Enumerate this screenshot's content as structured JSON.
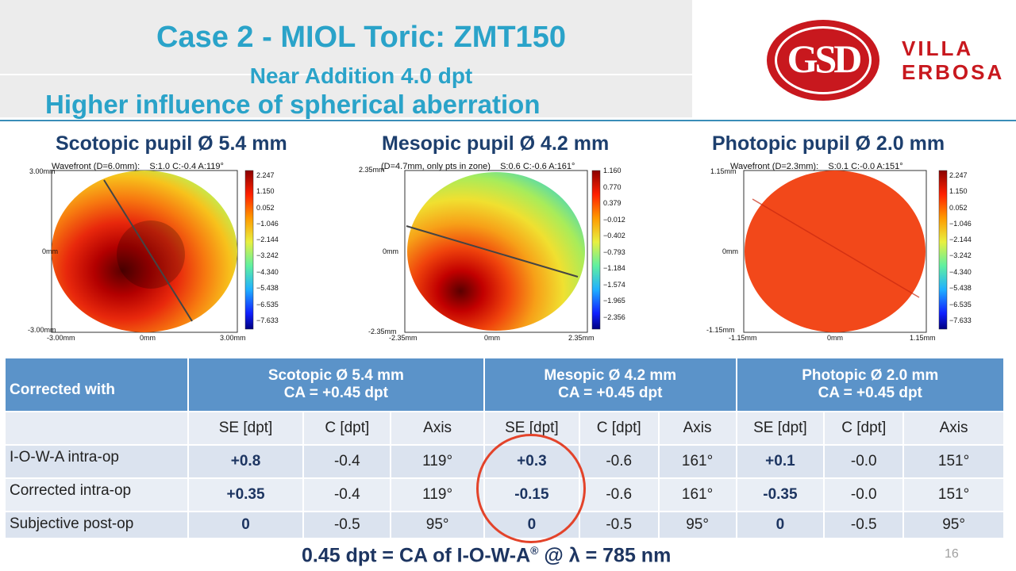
{
  "header": {
    "title": "Case 2 - MIOL Toric: ZMT150",
    "subtitle": "Near Addition 4.0 dpt",
    "subtitle2": "Higher influence of spherical aberration"
  },
  "logo": {
    "letters": "GSD",
    "name_line1": "VILLA",
    "name_line2": "ERBOSA",
    "color": "#c8181e"
  },
  "pupils": [
    {
      "title": "Scotopic pupil Ø 5.4 mm",
      "caption": "Wavefront (D=6.0mm):    S:1.0 C:-0.4 A:119°",
      "y_top": "3.00mm",
      "y_mid": "0mm",
      "y_bottom": "-3.00mm",
      "x_left": "-3.00mm",
      "x_mid": "0mm",
      "x_right": "3.00mm",
      "colorbar": [
        "2.247",
        "1.150",
        "0.052",
        "−1.046",
        "−2.144",
        "−3.242",
        "−4.340",
        "−5.438",
        "−6.535",
        "−7.633"
      ]
    },
    {
      "title": "Mesopic pupil Ø 4.2 mm",
      "caption": "(D=4.7mm, only pts in zone)    S:0.6 C:-0.6 A:161°",
      "y_top": "2.35mm",
      "y_mid": "0mm",
      "y_bottom": "-2.35mm",
      "x_left": "-2.35mm",
      "x_mid": "0mm",
      "x_right": "2.35mm",
      "colorbar": [
        "1.160",
        "0.770",
        "0.379",
        "−0.012",
        "−0.402",
        "−0.793",
        "−1.184",
        "−1.574",
        "−1.965",
        "−2.356"
      ]
    },
    {
      "title": "Photopic pupil Ø 2.0 mm",
      "caption": "Wavefront (D=2.3mm):    S:0.1 C:-0.0 A:151°",
      "y_top": "1.15mm",
      "y_mid": "0mm",
      "y_bottom": "-1.15mm",
      "x_left": "-1.15mm",
      "x_mid": "0mm",
      "x_right": "1.15mm",
      "colorbar": [
        "2.247",
        "1.150",
        "0.052",
        "−1.046",
        "−2.144",
        "−3.242",
        "−4.340",
        "−5.438",
        "−6.535",
        "−7.633"
      ]
    }
  ],
  "table": {
    "corner_label": "Corrected with",
    "groups": [
      {
        "line1": "Scotopic Ø 5.4 mm",
        "line2": "CA = +0.45 dpt"
      },
      {
        "line1": "Mesopic Ø 4.2 mm",
        "line2": "CA = +0.45 dpt"
      },
      {
        "line1": "Photopic Ø 2.0 mm",
        "line2": "CA = +0.45 dpt"
      }
    ],
    "columns": [
      "SE [dpt]",
      "C [dpt]",
      "Axis"
    ],
    "rows": [
      {
        "label": "I-O-W-A intra-op",
        "cells": [
          "+0.8",
          "-0.4",
          "119°",
          "+0.3",
          "-0.6",
          "161°",
          "+0.1",
          "-0.0",
          "151°"
        ]
      },
      {
        "label": "Corrected intra-op",
        "cells": [
          "+0.35",
          "-0.4",
          "119°",
          "-0.15",
          "-0.6",
          "161°",
          "-0.35",
          "-0.0",
          "151°"
        ]
      },
      {
        "label": "Subjective post-op",
        "cells": [
          "0",
          "-0.5",
          "95°",
          "0",
          "-0.5",
          "95°",
          "0",
          "-0.5",
          "95°"
        ]
      }
    ]
  },
  "footer": {
    "text_before": "0.45 dpt = CA of  I-O-W-A",
    "sup": "®",
    "text_after": " @ λ = 785 nm"
  },
  "page_number": "16"
}
